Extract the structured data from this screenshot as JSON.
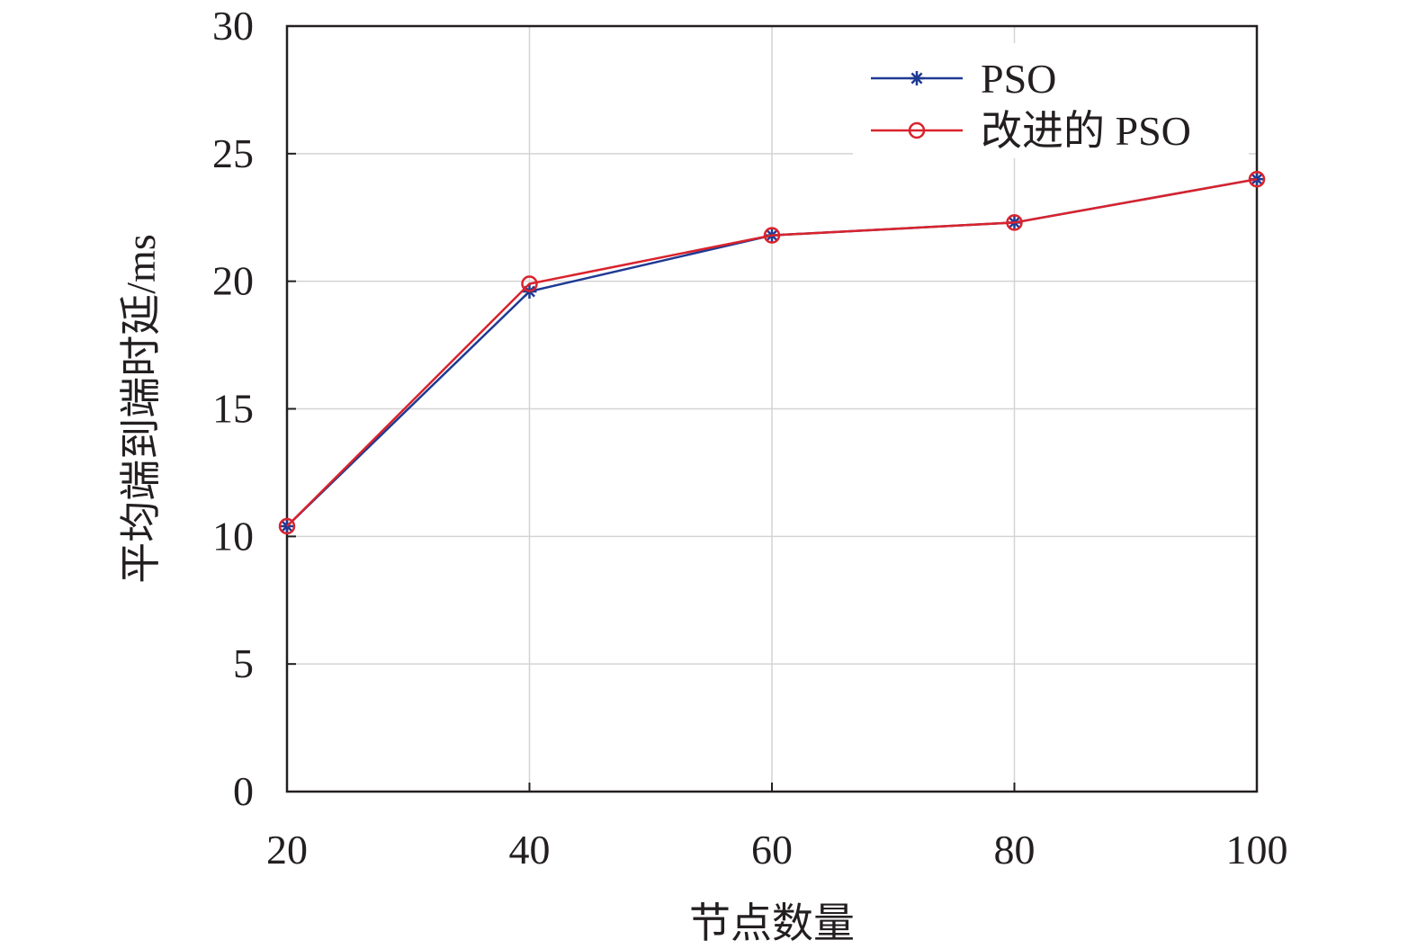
{
  "chart_data": {
    "type": "line",
    "xlabel": "节点数量",
    "ylabel": "平均端到端时延/ms",
    "x": [
      20,
      40,
      60,
      80,
      100
    ],
    "x_ticks": [
      "20",
      "40",
      "60",
      "80",
      "100"
    ],
    "y_ticks": [
      "0",
      "5",
      "10",
      "15",
      "20",
      "25",
      "30"
    ],
    "xlim": [
      20,
      100
    ],
    "ylim": [
      0,
      30
    ],
    "grid": true,
    "legend_position": "top-right",
    "series": [
      {
        "name": "PSO",
        "values": [
          10.4,
          19.6,
          21.8,
          22.3,
          24.0
        ],
        "color": "#1f3a93",
        "marker": "asterisk"
      },
      {
        "name": "改进的 PSO",
        "values": [
          10.4,
          19.9,
          21.8,
          22.3,
          24.0
        ],
        "color": "#d9232d",
        "marker": "circle"
      }
    ]
  }
}
